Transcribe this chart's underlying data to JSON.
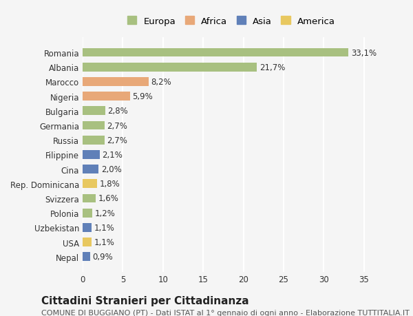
{
  "countries": [
    "Romania",
    "Albania",
    "Marocco",
    "Nigeria",
    "Bulgaria",
    "Germania",
    "Russia",
    "Filippine",
    "Cina",
    "Rep. Dominicana",
    "Svizzera",
    "Polonia",
    "Uzbekistan",
    "USA",
    "Nepal"
  ],
  "values": [
    33.1,
    21.7,
    8.2,
    5.9,
    2.8,
    2.7,
    2.7,
    2.1,
    2.0,
    1.8,
    1.6,
    1.2,
    1.1,
    1.1,
    0.9
  ],
  "labels": [
    "33,1%",
    "21,7%",
    "8,2%",
    "5,9%",
    "2,8%",
    "2,7%",
    "2,7%",
    "2,1%",
    "2,0%",
    "1,8%",
    "1,6%",
    "1,2%",
    "1,1%",
    "1,1%",
    "0,9%"
  ],
  "colors": [
    "#a8c080",
    "#a8c080",
    "#e8a878",
    "#e8a878",
    "#a8c080",
    "#a8c080",
    "#a8c080",
    "#6080b8",
    "#6080b8",
    "#e8c860",
    "#a8c080",
    "#a8c080",
    "#6080b8",
    "#e8c860",
    "#6080b8"
  ],
  "legend_labels": [
    "Europa",
    "Africa",
    "Asia",
    "America"
  ],
  "legend_colors": [
    "#a8c080",
    "#e8a878",
    "#6080b8",
    "#e8c860"
  ],
  "title": "Cittadini Stranieri per Cittadinanza",
  "subtitle": "COMUNE DI BUGGIANO (PT) - Dati ISTAT al 1° gennaio di ogni anno - Elaborazione TUTTITALIA.IT",
  "xlim": [
    0,
    37
  ],
  "xticks": [
    0,
    5,
    10,
    15,
    20,
    25,
    30,
    35
  ],
  "background_color": "#f5f5f5",
  "grid_color": "#ffffff",
  "bar_height": 0.6,
  "label_fontsize": 8.5,
  "tick_fontsize": 8.5,
  "title_fontsize": 11,
  "subtitle_fontsize": 8
}
